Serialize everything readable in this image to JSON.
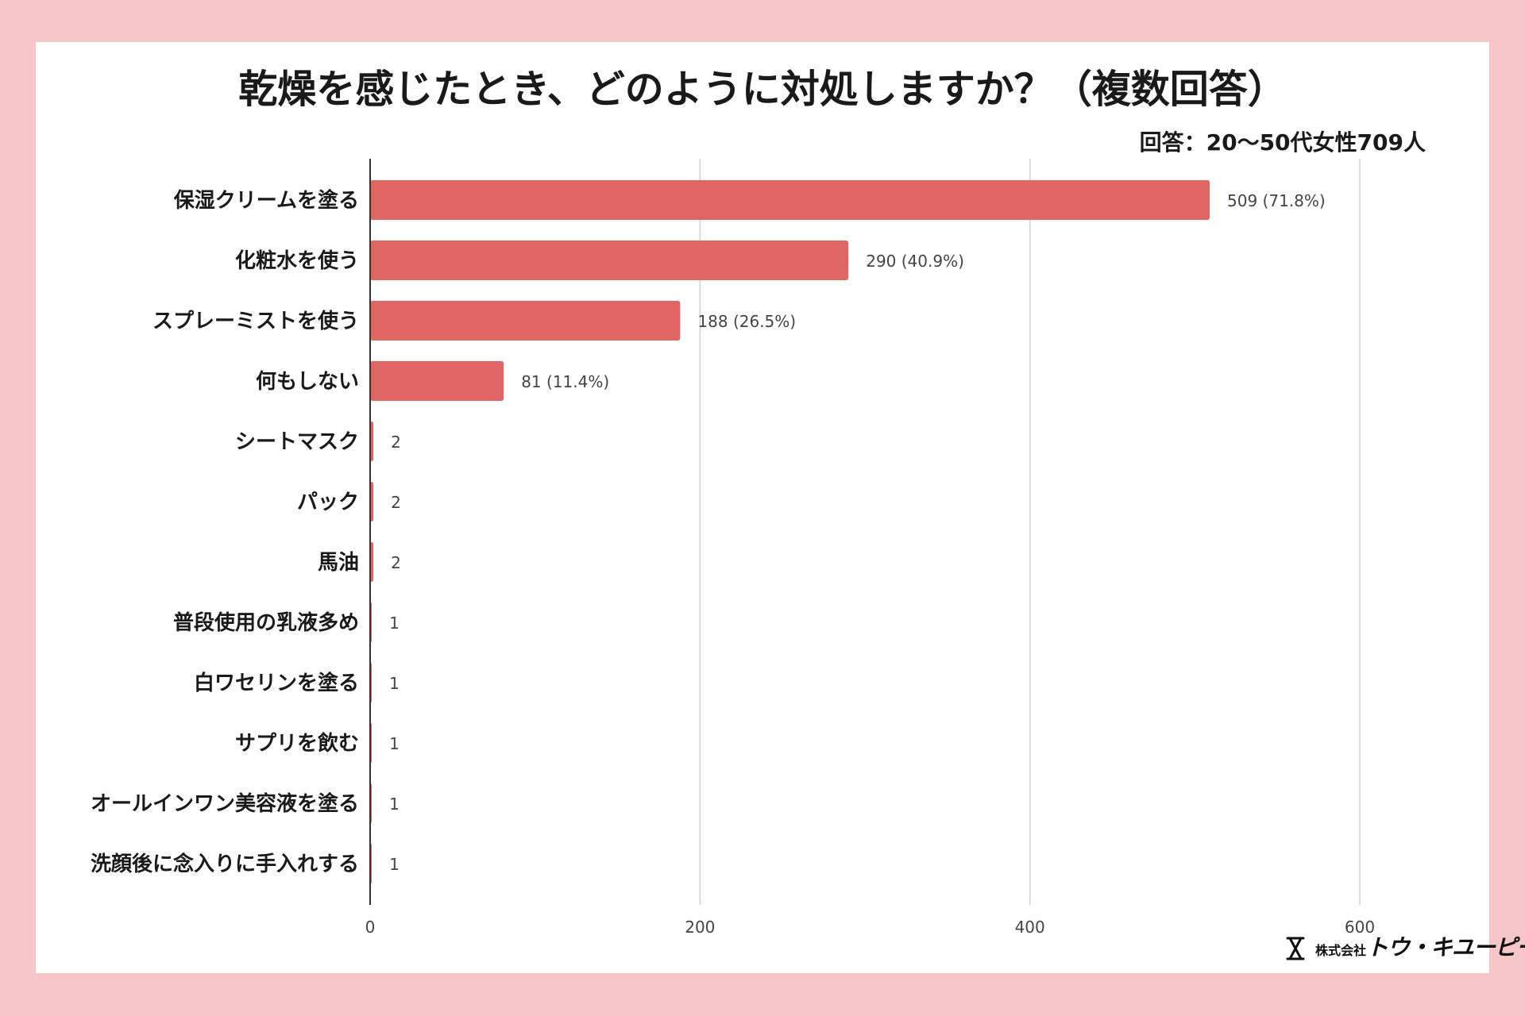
{
  "colors": {
    "page_background": "#f7c6c8",
    "card_background": "#ffffff",
    "bar": "#e06666",
    "gridline": "#d0d0d0",
    "axis": "#333333",
    "text": "#1a1a1a",
    "label_text": "#444444"
  },
  "chart_data": {
    "type": "bar",
    "orientation": "horizontal",
    "title": "乾燥を感じたとき、どのように対処しますか？（複数回答）",
    "subtitle": "回答：20〜50代女性709人",
    "categories": [
      "保湿クリームを塗る",
      "化粧水を使う",
      "スプレーミストを使う",
      "何もしない",
      "シートマスク",
      "パック",
      "馬油",
      "普段使用の乳液多め",
      "白ワセリンを塗る",
      "サプリを飲む",
      "オールインワン美容液を塗る",
      "洗顔後に念入りに手入れする"
    ],
    "values": [
      509,
      290,
      188,
      81,
      2,
      2,
      2,
      1,
      1,
      1,
      1,
      1
    ],
    "data_labels": [
      "509 (71.8%)",
      "290 (40.9%)",
      "188 (26.5%)",
      "81 (11.4%)",
      "2",
      "2",
      "2",
      "1",
      "1",
      "1",
      "1",
      "1"
    ],
    "xlim": [
      0,
      600
    ],
    "xticks": [
      0,
      200,
      400,
      600
    ],
    "xtick_labels": [
      "0",
      "200",
      "400",
      "600"
    ],
    "xlabel": "",
    "ylabel": "",
    "grid": true,
    "legend": "none"
  },
  "logo": {
    "company_prefix": "株式会社",
    "company_name": "トウ・キユーピー",
    "icon": "hourglass-icon"
  }
}
